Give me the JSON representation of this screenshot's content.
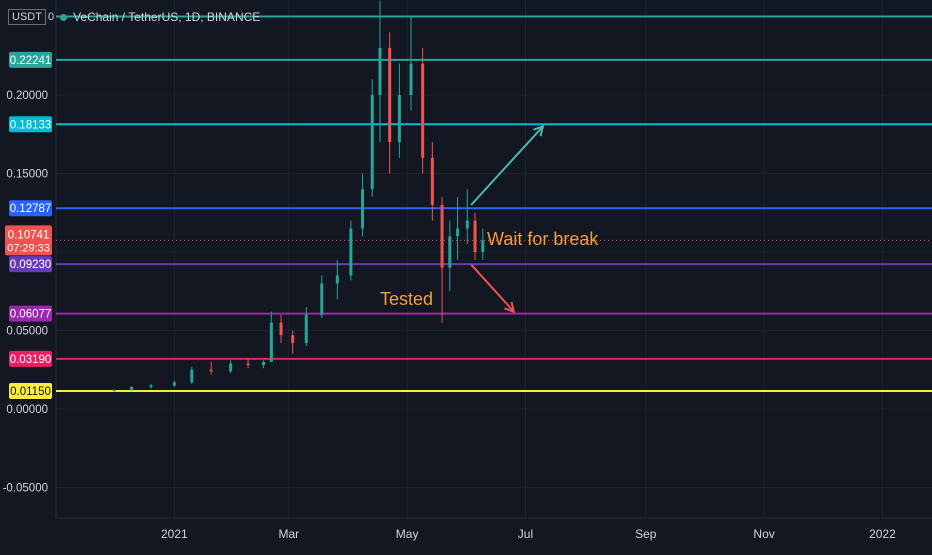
{
  "legend": {
    "currency": "USDT",
    "currency_suffix": "0",
    "symbol_title": "VeChain / TetherUS, 1D, BINANCE"
  },
  "chart_data": {
    "type": "candlestick",
    "title": "VeChain / TetherUS, 1D, BINANCE",
    "xlabel": "",
    "ylabel": "",
    "ylim": [
      -0.08,
      0.26
    ],
    "y_ticks": [
      "0.20000",
      "0.15000",
      "0.05000",
      "0.00000",
      "-0.05000"
    ],
    "x_ticks": [
      "2021",
      "Mar",
      "May",
      "Jul",
      "Sep",
      "Nov",
      "2022"
    ],
    "grid": true,
    "current_price": "0.10741",
    "countdown": "07:29:33",
    "horizontal_levels": [
      {
        "value": 0.22241,
        "label": "0.22241",
        "color": "#26a69a"
      },
      {
        "value": 0.18133,
        "label": "0.18133",
        "color": "#00bcd4"
      },
      {
        "value": 0.12787,
        "label": "0.12787",
        "color": "#2962ff"
      },
      {
        "value": 0.0923,
        "label": "0.09230",
        "color": "#673ab7"
      },
      {
        "value": 0.06077,
        "label": "0.06077",
        "color": "#9c27b0"
      },
      {
        "value": 0.0319,
        "label": "0.03190",
        "color": "#e91e63"
      },
      {
        "value": 0.0115,
        "label": "0.01150",
        "color": "#ffeb3b"
      }
    ],
    "top_level": {
      "value": 0.25,
      "color": "#26a69a"
    },
    "annotations": [
      {
        "text": "Wait for break",
        "color": "#f59c3b"
      },
      {
        "text": "Tested",
        "color": "#f59c3b"
      }
    ],
    "arrows": [
      {
        "from": [
          "2021-06-03",
          0.13
        ],
        "to": [
          "2021-07-10",
          0.18
        ],
        "color": "#4db6ac"
      },
      {
        "from": [
          "2021-06-03",
          0.092
        ],
        "to": [
          "2021-06-25",
          0.062
        ],
        "color": "#ef5350"
      }
    ],
    "candles": [
      [
        "2020-12-01",
        0.0115,
        0.0125,
        0.011,
        0.012
      ],
      [
        "2020-12-10",
        0.012,
        0.0145,
        0.0115,
        0.014
      ],
      [
        "2020-12-20",
        0.014,
        0.016,
        0.013,
        0.015
      ],
      [
        "2021-01-01",
        0.015,
        0.018,
        0.014,
        0.017
      ],
      [
        "2021-01-10",
        0.017,
        0.027,
        0.016,
        0.025
      ],
      [
        "2021-01-20",
        0.025,
        0.03,
        0.022,
        0.024
      ],
      [
        "2021-01-30",
        0.024,
        0.031,
        0.023,
        0.029
      ],
      [
        "2021-02-08",
        0.029,
        0.032,
        0.026,
        0.028
      ],
      [
        "2021-02-16",
        0.028,
        0.031,
        0.026,
        0.03
      ],
      [
        "2021-02-20",
        0.03,
        0.062,
        0.03,
        0.055
      ],
      [
        "2021-02-25",
        0.055,
        0.06,
        0.042,
        0.047
      ],
      [
        "2021-03-03",
        0.047,
        0.05,
        0.035,
        0.042
      ],
      [
        "2021-03-10",
        0.042,
        0.065,
        0.04,
        0.06
      ],
      [
        "2021-03-18",
        0.06,
        0.085,
        0.058,
        0.08
      ],
      [
        "2021-03-26",
        0.08,
        0.095,
        0.07,
        0.085
      ],
      [
        "2021-04-02",
        0.085,
        0.12,
        0.082,
        0.115
      ],
      [
        "2021-04-08",
        0.115,
        0.15,
        0.11,
        0.14
      ],
      [
        "2021-04-13",
        0.14,
        0.21,
        0.135,
        0.2
      ],
      [
        "2021-04-17",
        0.2,
        0.26,
        0.17,
        0.23
      ],
      [
        "2021-04-22",
        0.23,
        0.24,
        0.15,
        0.17
      ],
      [
        "2021-04-27",
        0.17,
        0.22,
        0.16,
        0.2
      ],
      [
        "2021-05-03",
        0.2,
        0.25,
        0.19,
        0.22
      ],
      [
        "2021-05-09",
        0.22,
        0.23,
        0.15,
        0.16
      ],
      [
        "2021-05-14",
        0.16,
        0.17,
        0.12,
        0.13
      ],
      [
        "2021-05-19",
        0.13,
        0.135,
        0.055,
        0.09
      ],
      [
        "2021-05-23",
        0.09,
        0.12,
        0.075,
        0.11
      ],
      [
        "2021-05-27",
        0.11,
        0.135,
        0.095,
        0.115
      ],
      [
        "2021-06-01",
        0.115,
        0.14,
        0.105,
        0.12
      ],
      [
        "2021-06-05",
        0.12,
        0.125,
        0.095,
        0.1
      ],
      [
        "2021-06-09",
        0.1,
        0.115,
        0.095,
        0.1074
      ]
    ]
  },
  "axis": {
    "y_labels": [
      "0.20000",
      "0.15000",
      "0.05000",
      "0.00000",
      "-0.05000"
    ],
    "x_labels": [
      "2021",
      "Mar",
      "May",
      "Jul",
      "Sep",
      "Nov",
      "2022"
    ]
  }
}
